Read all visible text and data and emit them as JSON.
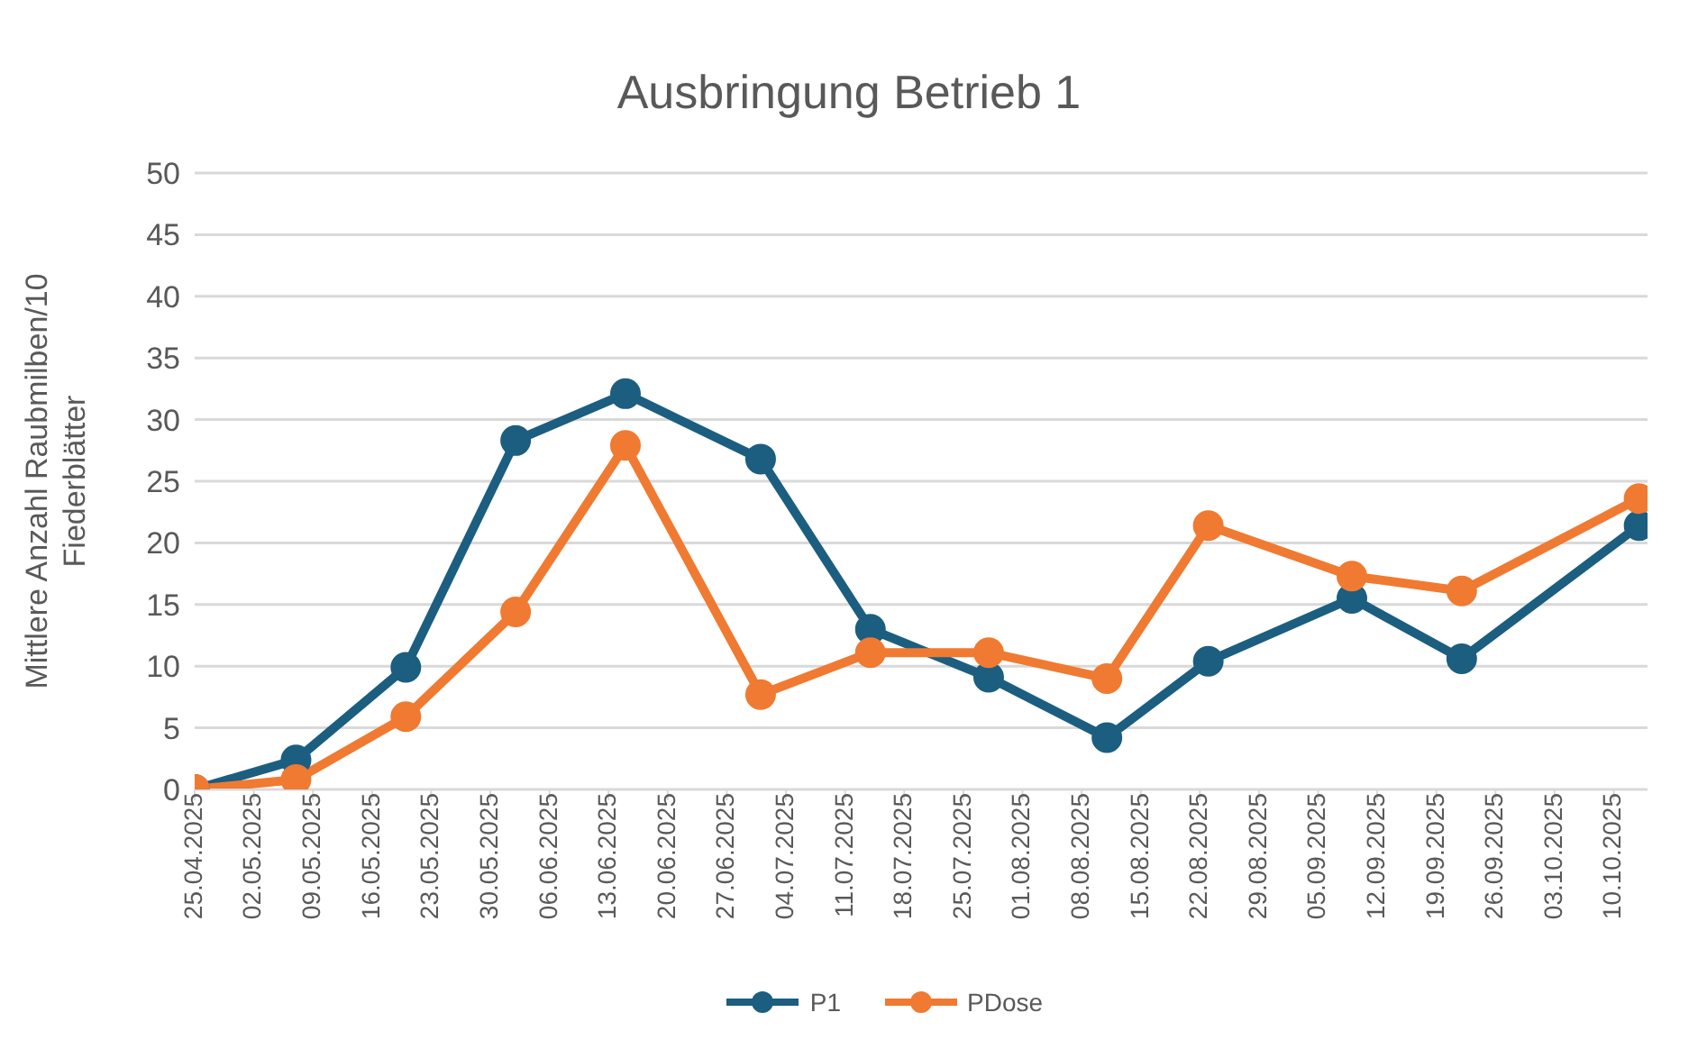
{
  "chart_data": {
    "type": "line",
    "title": "Ausbringung Betrieb 1",
    "ylabel": "Mittlere Anzahl Raubmilben/10 Fiederblätter",
    "x": [
      "2025-04-25",
      "2025-05-07",
      "2025-05-20",
      "2025-06-02",
      "2025-06-15",
      "2025-07-01",
      "2025-07-14",
      "2025-07-28",
      "2025-08-11",
      "2025-08-23",
      "2025-09-09",
      "2025-09-22",
      "2025-10-13"
    ],
    "series": [
      {
        "name": "P1",
        "color": "#1b5e80",
        "values": [
          0,
          2.4,
          9.9,
          28.3,
          32.1,
          26.8,
          13.0,
          9.1,
          4.2,
          10.4,
          15.5,
          10.6,
          21.4
        ]
      },
      {
        "name": "PDose",
        "color": "#f07a31",
        "values": [
          0,
          0.8,
          5.9,
          14.4,
          27.9,
          7.7,
          11.1,
          11.1,
          9.0,
          21.4,
          17.3,
          16.1,
          23.6
        ]
      }
    ],
    "xlim": [
      "2025-04-25",
      "2025-10-14"
    ],
    "xticks": [
      {
        "value": "2025-04-25",
        "label": "25.04.2025"
      },
      {
        "value": "2025-05-02",
        "label": "02.05.2025"
      },
      {
        "value": "2025-05-09",
        "label": "09.05.2025"
      },
      {
        "value": "2025-05-16",
        "label": "16.05.2025"
      },
      {
        "value": "2025-05-23",
        "label": "23.05.2025"
      },
      {
        "value": "2025-05-30",
        "label": "30.05.2025"
      },
      {
        "value": "2025-06-06",
        "label": "06.06.2025"
      },
      {
        "value": "2025-06-13",
        "label": "13.06.2025"
      },
      {
        "value": "2025-06-20",
        "label": "20.06.2025"
      },
      {
        "value": "2025-06-27",
        "label": "27.06.2025"
      },
      {
        "value": "2025-07-04",
        "label": "04.07.2025"
      },
      {
        "value": "2025-07-11",
        "label": "11.07.2025"
      },
      {
        "value": "2025-07-18",
        "label": "18.07.2025"
      },
      {
        "value": "2025-07-25",
        "label": "25.07.2025"
      },
      {
        "value": "2025-08-01",
        "label": "01.08.2025"
      },
      {
        "value": "2025-08-08",
        "label": "08.08.2025"
      },
      {
        "value": "2025-08-15",
        "label": "15.08.2025"
      },
      {
        "value": "2025-08-22",
        "label": "22.08.2025"
      },
      {
        "value": "2025-08-29",
        "label": "29.08.2025"
      },
      {
        "value": "2025-09-05",
        "label": "05.09.2025"
      },
      {
        "value": "2025-09-12",
        "label": "12.09.2025"
      },
      {
        "value": "2025-09-19",
        "label": "19.09.2025"
      },
      {
        "value": "2025-09-26",
        "label": "26.09.2025"
      },
      {
        "value": "2025-10-03",
        "label": "03.10.2025"
      },
      {
        "value": "2025-10-10",
        "label": "10.10.2025"
      }
    ],
    "ylim": [
      0,
      50
    ],
    "yticks": [
      0,
      5,
      10,
      15,
      20,
      25,
      30,
      35,
      40,
      45,
      50
    ],
    "grid": "y",
    "legend": "bottom",
    "marker": "circle",
    "line_style": "solid"
  }
}
